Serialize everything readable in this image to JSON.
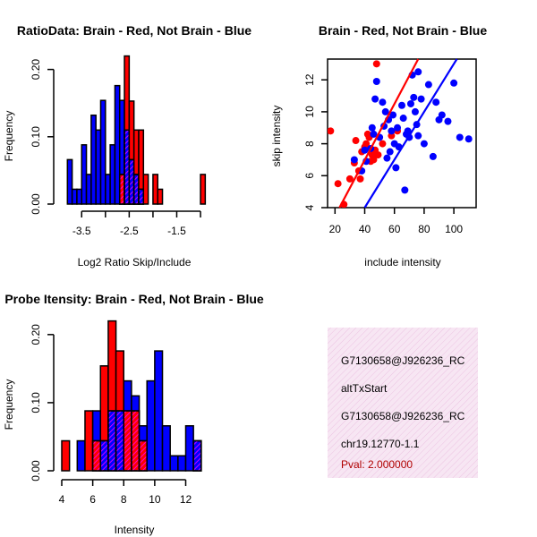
{
  "chart_data": [
    {
      "id": "ratio_hist",
      "type": "histogram",
      "title": "RatioData: Brain - Red, Not Brain - Blue",
      "xlabel": "Log2 Ratio Skip/Include",
      "ylabel": "Frequency",
      "xlim": [
        -3.9,
        -0.85
      ],
      "ylim": [
        0,
        0.25
      ],
      "xticks": [
        -3.5,
        -2.5,
        -1.5
      ],
      "xtick_labels": [
        "-3.5",
        "-2.5",
        "-1.5"
      ],
      "yticks": [
        0,
        0.1,
        0.2
      ],
      "ytick_labels": [
        "0.00",
        "0.10",
        "0.20"
      ],
      "bin_width": 0.1,
      "series": [
        {
          "name": "Brain",
          "color": "#ff0000",
          "bins": [
            [
              -2.7,
              0.044
            ],
            [
              -2.6,
              0.22
            ],
            [
              -2.5,
              0.153
            ],
            [
              -2.4,
              0.11
            ],
            [
              -2.3,
              0.11
            ],
            [
              -2.2,
              0.044
            ],
            [
              -2.0,
              0.044
            ],
            [
              -1.9,
              0.022
            ],
            [
              -1.0,
              0.044
            ]
          ]
        },
        {
          "name": "Not Brain",
          "color": "#0000ff",
          "bins": [
            [
              -3.8,
              0.066
            ],
            [
              -3.7,
              0.022
            ],
            [
              -3.6,
              0.022
            ],
            [
              -3.5,
              0.088
            ],
            [
              -3.4,
              0.044
            ],
            [
              -3.3,
              0.132
            ],
            [
              -3.2,
              0.11
            ],
            [
              -3.1,
              0.154
            ],
            [
              -3.0,
              0.044
            ],
            [
              -2.9,
              0.088
            ],
            [
              -2.8,
              0.176
            ],
            [
              -2.7,
              0.154
            ],
            [
              -2.6,
              0.11
            ],
            [
              -2.5,
              0.066
            ],
            [
              -2.4,
              0.044
            ],
            [
              -2.3,
              0.022
            ]
          ]
        }
      ]
    },
    {
      "id": "scatter",
      "type": "scatter",
      "title": "Brain - Red, Not Brain - Blue",
      "xlabel": "include intensity",
      "ylabel": "skip intensity",
      "xlim": [
        15,
        115
      ],
      "ylim": [
        4,
        13.3
      ],
      "xticks": [
        20,
        40,
        60,
        80,
        100
      ],
      "xtick_labels": [
        "20",
        "40",
        "60",
        "80",
        "100"
      ],
      "yticks": [
        4,
        6,
        8,
        10,
        12
      ],
      "ytick_labels": [
        "4",
        "6",
        "8",
        "10",
        "12"
      ],
      "series": [
        {
          "name": "Brain",
          "color": "#ff0000",
          "fit": [
            [
              23,
              4.0
            ],
            [
              76,
              13.3
            ]
          ],
          "points": [
            [
              17,
              8.8
            ],
            [
              22,
              5.5
            ],
            [
              26,
              4.2
            ],
            [
              30,
              5.8
            ],
            [
              33,
              6.8
            ],
            [
              34,
              8.2
            ],
            [
              36,
              6.3
            ],
            [
              37,
              5.8
            ],
            [
              38,
              7.5
            ],
            [
              40,
              7.8
            ],
            [
              41,
              8.0
            ],
            [
              42,
              8.6
            ],
            [
              43,
              8.4
            ],
            [
              44,
              6.9
            ],
            [
              45,
              7.3
            ],
            [
              46,
              7.0
            ],
            [
              47,
              7.6
            ],
            [
              48,
              13.0
            ],
            [
              49,
              7.3
            ],
            [
              52,
              8.0
            ],
            [
              58,
              8.5
            ],
            [
              62,
              8.8
            ]
          ]
        },
        {
          "name": "Not Brain",
          "color": "#0000ff",
          "fit": [
            [
              40,
              4.0
            ],
            [
              102,
              13.3
            ]
          ],
          "points": [
            [
              33,
              7.0
            ],
            [
              38,
              6.3
            ],
            [
              40,
              7.6
            ],
            [
              41,
              6.9
            ],
            [
              44,
              7.7
            ],
            [
              45,
              9.0
            ],
            [
              46,
              8.6
            ],
            [
              47,
              10.8
            ],
            [
              48,
              11.9
            ],
            [
              50,
              8.4
            ],
            [
              52,
              10.6
            ],
            [
              53,
              9.1
            ],
            [
              54,
              10.0
            ],
            [
              55,
              7.1
            ],
            [
              56,
              9.5
            ],
            [
              57,
              7.5
            ],
            [
              58,
              8.8
            ],
            [
              59,
              9.8
            ],
            [
              60,
              8.0
            ],
            [
              61,
              6.5
            ],
            [
              62,
              9.0
            ],
            [
              63,
              7.8
            ],
            [
              65,
              10.4
            ],
            [
              66,
              9.6
            ],
            [
              67,
              5.1
            ],
            [
              68,
              8.6
            ],
            [
              69,
              8.8
            ],
            [
              70,
              8.4
            ],
            [
              71,
              10.5
            ],
            [
              72,
              12.3
            ],
            [
              73,
              10.9
            ],
            [
              74,
              10.0
            ],
            [
              75,
              9.2
            ],
            [
              76,
              12.5
            ],
            [
              78,
              10.8
            ],
            [
              80,
              8.0
            ],
            [
              83,
              11.7
            ],
            [
              86,
              7.2
            ],
            [
              88,
              10.6
            ],
            [
              90,
              9.5
            ],
            [
              92,
              9.8
            ],
            [
              96,
              9.4
            ],
            [
              100,
              11.8
            ],
            [
              104,
              8.4
            ],
            [
              110,
              8.3
            ],
            [
              76,
              8.5
            ]
          ]
        }
      ]
    },
    {
      "id": "intensity_hist",
      "type": "histogram",
      "title": "Probe Itensity: Brain - Red, Not Brain - Blue",
      "xlabel": "Intensity",
      "ylabel": "Frequency",
      "xlim": [
        4,
        13.3
      ],
      "ylim": [
        0,
        0.23
      ],
      "xticks": [
        4,
        6,
        8,
        10,
        12
      ],
      "xtick_labels": [
        "4",
        "6",
        "8",
        "10",
        "12"
      ],
      "yticks": [
        0,
        0.1,
        0.2
      ],
      "ytick_labels": [
        "0.00",
        "0.10",
        "0.20"
      ],
      "bin_width": 0.5,
      "series": [
        {
          "name": "Brain",
          "color": "#ff0000",
          "bins": [
            [
              4.0,
              0.044
            ],
            [
              5.5,
              0.088
            ],
            [
              6.0,
              0.044
            ],
            [
              6.5,
              0.154
            ],
            [
              7.0,
              0.22
            ],
            [
              7.5,
              0.176
            ],
            [
              8.0,
              0.088
            ],
            [
              8.5,
              0.088
            ],
            [
              9.0,
              0.044
            ],
            [
              12.5,
              0.044
            ]
          ]
        },
        {
          "name": "Not Brain",
          "color": "#0000ff",
          "bins": [
            [
              5.0,
              0.044
            ],
            [
              6.0,
              0.088
            ],
            [
              6.5,
              0.044
            ],
            [
              7.0,
              0.088
            ],
            [
              7.5,
              0.088
            ],
            [
              8.0,
              0.132
            ],
            [
              8.5,
              0.11
            ],
            [
              9.0,
              0.066
            ],
            [
              9.5,
              0.132
            ],
            [
              10.0,
              0.176
            ],
            [
              10.5,
              0.066
            ],
            [
              11.0,
              0.022
            ],
            [
              11.5,
              0.022
            ],
            [
              12.0,
              0.066
            ],
            [
              12.5,
              0.044
            ]
          ]
        }
      ]
    }
  ],
  "info_box": {
    "lines": [
      "G7130658@J926236_RC",
      "altTxStart",
      "G7130658@J926236_RC",
      "chr19.12770-1.1"
    ],
    "pval": "Pval: 2.000000"
  }
}
